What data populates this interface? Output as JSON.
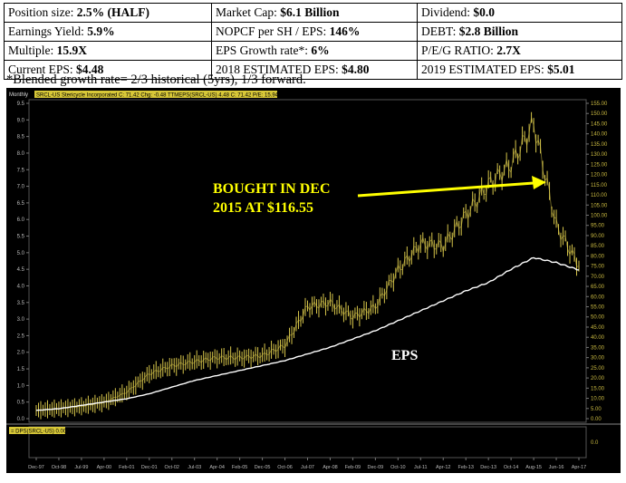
{
  "stats": {
    "rows": [
      [
        {
          "label": "Position size: ",
          "value": "2.5% (HALF)"
        },
        {
          "label": "Market Cap: ",
          "value": "$6.1 Billion"
        },
        {
          "label": "Dividend: ",
          "value": "$0.0"
        }
      ],
      [
        {
          "label": "Earnings Yield: ",
          "value": "5.9%"
        },
        {
          "label": "NOPCF per SH / EPS: ",
          "value": "146%"
        },
        {
          "label": "DEBT: ",
          "value": "$2.8 Billion"
        }
      ],
      [
        {
          "label": "Multiple: ",
          "value": "15.9X"
        },
        {
          "label": "EPS Growth rate*: ",
          "value": "6%"
        },
        {
          "label": "P/E/G RATIO: ",
          "value": "2.7X"
        }
      ],
      [
        {
          "label": "Current EPS: ",
          "value": "$4.48"
        },
        {
          "label": "2018 ESTIMATED EPS: ",
          "value": "$4.80"
        },
        {
          "label": "2019 ESTIMATED EPS: ",
          "value": "$5.01"
        }
      ]
    ]
  },
  "footnote": "*Blended growth rate= 2/3 historical (5yrs), 1/3 forward.",
  "chart_header": {
    "period": "Monthly",
    "legend": "SRCL-US  Stericycle Incorporated  C: 71.42  Chg: -0.48  TTMEPS(SRCL-US) 4.48  C: 71.42  P/E: 15.94",
    "sub_label": "= DPS(SRCL-US) 0.00",
    "sub_value": "0.0"
  },
  "annotation": {
    "line1": "BOUGHT IN DEC",
    "line2": "2015 AT $116.55",
    "eps_label": "EPS"
  },
  "colors": {
    "price": "#d6c54a",
    "eps": "#ffffff",
    "arrow": "#ffff00",
    "axis_text": "#c8b840",
    "background": "#000000"
  },
  "chart_data": {
    "type": "line",
    "title": "SRCL-US Stericycle Incorporated",
    "x_ticks": [
      "Dec-97",
      "Oct-98",
      "Jul-99",
      "Apr-00",
      "Feb-01",
      "Dec-01",
      "Oct-02",
      "Jul-03",
      "Apr-04",
      "Feb-05",
      "Dec-05",
      "Oct-06",
      "Jul-07",
      "Apr-08",
      "Feb-09",
      "Dec-09",
      "Oct-10",
      "Jul-11",
      "Apr-12",
      "Feb-13",
      "Dec-13",
      "Oct-14",
      "Aug-15",
      "Jun-16",
      "Apr-17"
    ],
    "left_ticks": [
      "9.5",
      "9.0",
      "8.5",
      "8.0",
      "7.5",
      "7.0",
      "6.5",
      "6.0",
      "5.5",
      "5.0",
      "4.5",
      "4.0",
      "3.5",
      "3.0",
      "2.5",
      "2.0",
      "1.5",
      "1.0",
      "0.5",
      "0.0"
    ],
    "right_ticks": [
      "155.00",
      "150.00",
      "145.00",
      "140.00",
      "135.00",
      "130.00",
      "125.00",
      "120.00",
      "115.00",
      "110.00",
      "105.00",
      "100.00",
      "95.00",
      "90.00",
      "85.00",
      "80.00",
      "75.00",
      "70.00",
      "65.00",
      "60.00",
      "55.00",
      "50.00",
      "45.00",
      "40.00",
      "35.00",
      "30.00",
      "25.00",
      "20.00",
      "15.00",
      "10.00",
      "5.00",
      "0.00"
    ],
    "price_range": [
      0,
      155
    ],
    "eps_range": [
      0,
      9.5
    ],
    "series": [
      {
        "name": "SRCL-US",
        "points": [
          [
            "Dec-97",
            4
          ],
          [
            "Oct-98",
            5
          ],
          [
            "Jul-99",
            6
          ],
          [
            "Apr-00",
            8
          ],
          [
            "Feb-01",
            13
          ],
          [
            "Dec-01",
            22
          ],
          [
            "Oct-02",
            26
          ],
          [
            "Jul-03",
            28
          ],
          [
            "Apr-04",
            30
          ],
          [
            "Feb-05",
            30
          ],
          [
            "Dec-05",
            31
          ],
          [
            "Oct-06",
            36
          ],
          [
            "Jul-07",
            55
          ],
          [
            "Apr-08",
            57
          ],
          [
            "Feb-09",
            50
          ],
          [
            "Dec-09",
            55
          ],
          [
            "Oct-10",
            73
          ],
          [
            "Jul-11",
            86
          ],
          [
            "Apr-12",
            85
          ],
          [
            "Feb-13",
            100
          ],
          [
            "Dec-13",
            115
          ],
          [
            "Oct-14",
            125
          ],
          [
            "Aug-15",
            145
          ],
          [
            "Jun-16",
            95
          ],
          [
            "Apr-17",
            75
          ]
        ]
      },
      {
        "name": "TTMEPS(SRCL-US)",
        "points": [
          [
            "Dec-97",
            0.25
          ],
          [
            "Oct-98",
            0.3
          ],
          [
            "Jul-99",
            0.4
          ],
          [
            "Apr-00",
            0.5
          ],
          [
            "Feb-01",
            0.6
          ],
          [
            "Dec-01",
            0.75
          ],
          [
            "Oct-02",
            0.95
          ],
          [
            "Jul-03",
            1.15
          ],
          [
            "Apr-04",
            1.3
          ],
          [
            "Feb-05",
            1.45
          ],
          [
            "Dec-05",
            1.6
          ],
          [
            "Oct-06",
            1.75
          ],
          [
            "Jul-07",
            1.95
          ],
          [
            "Apr-08",
            2.15
          ],
          [
            "Feb-09",
            2.4
          ],
          [
            "Dec-09",
            2.65
          ],
          [
            "Oct-10",
            2.95
          ],
          [
            "Jul-11",
            3.25
          ],
          [
            "Apr-12",
            3.55
          ],
          [
            "Feb-13",
            3.85
          ],
          [
            "Dec-13",
            4.1
          ],
          [
            "Oct-14",
            4.5
          ],
          [
            "Aug-15",
            4.85
          ],
          [
            "Jun-16",
            4.7
          ],
          [
            "Apr-17",
            4.48
          ]
        ]
      }
    ],
    "grid": false
  }
}
